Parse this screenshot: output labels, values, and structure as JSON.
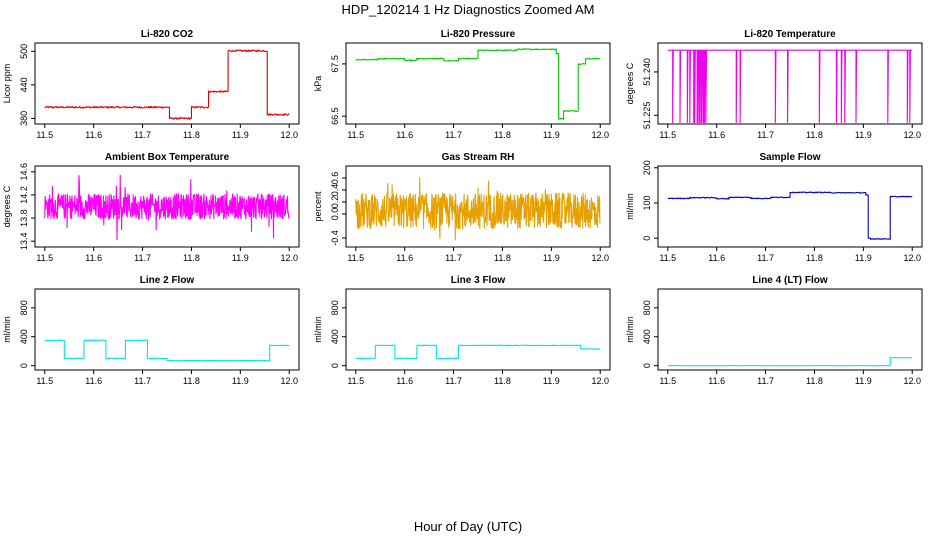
{
  "figure": {
    "title": "HDP_120214  1 Hz Diagnostics Zoomed AM",
    "xlabel": "Hour of Day (UTC)"
  },
  "chart_data": [
    {
      "type": "line",
      "title": "Li-820 CO2",
      "ylabel": "Licor ppm",
      "color": "#dd0000",
      "xlim": [
        11.5,
        12.0
      ],
      "ylim": [
        370,
        515
      ],
      "xticks": [
        "11.5",
        "11.6",
        "11.7",
        "11.8",
        "11.9",
        "12.0"
      ],
      "yticks": [
        380,
        440,
        500
      ],
      "shape": "step",
      "segments": [
        [
          11.5,
          11.755,
          400
        ],
        [
          11.755,
          11.8,
          380
        ],
        [
          11.8,
          11.835,
          400
        ],
        [
          11.835,
          11.875,
          428
        ],
        [
          11.875,
          11.955,
          501
        ],
        [
          11.955,
          12.0,
          387
        ]
      ],
      "noise": 1.5
    },
    {
      "type": "line",
      "title": "Li-820 Pressure",
      "ylabel": "kPa",
      "color": "#00cc00",
      "xlim": [
        11.5,
        12.0
      ],
      "ylim": [
        66.35,
        67.9
      ],
      "xticks": [
        "11.5",
        "11.6",
        "11.7",
        "11.8",
        "11.9",
        "12.0"
      ],
      "yticks": [
        "66.5",
        "67.5"
      ],
      "shape": "step",
      "segments": [
        [
          11.5,
          11.545,
          67.58
        ],
        [
          11.545,
          11.6,
          67.6
        ],
        [
          11.6,
          11.625,
          67.57
        ],
        [
          11.625,
          11.68,
          67.6
        ],
        [
          11.68,
          11.71,
          67.56
        ],
        [
          11.71,
          11.75,
          67.6
        ],
        [
          11.75,
          11.83,
          67.76
        ],
        [
          11.83,
          11.91,
          67.78
        ],
        [
          11.91,
          11.915,
          67.7
        ],
        [
          11.915,
          11.925,
          66.45
        ],
        [
          11.925,
          11.955,
          66.6
        ],
        [
          11.955,
          11.97,
          67.5
        ],
        [
          11.97,
          12.0,
          67.6
        ]
      ],
      "noise": 0.01
    },
    {
      "type": "line",
      "title": "Li-820 Temperature",
      "ylabel": "degrees C",
      "color": "#ee00ee",
      "xlim": [
        11.5,
        12.0
      ],
      "ylim": [
        51.222,
        51.25
      ],
      "xticks": [
        "11.5",
        "11.6",
        "11.7",
        "11.8",
        "11.9",
        "12.0"
      ],
      "yticks": [
        "51.225",
        "51.240"
      ],
      "shape": "spikes",
      "base": 51.2475,
      "spike_to": 51.2225,
      "spike_x": [
        11.51,
        11.525,
        11.54,
        11.545,
        11.553,
        11.555,
        11.56,
        11.562,
        11.565,
        11.568,
        11.57,
        11.573,
        11.575,
        11.578,
        11.64,
        11.648,
        11.72,
        11.745,
        11.81,
        11.845,
        11.855,
        11.862,
        11.885,
        11.95,
        11.99,
        11.995
      ]
    },
    {
      "type": "line",
      "title": "Ambient Box Temperature",
      "ylabel": "degrees C",
      "color": "#ff00ff",
      "xlim": [
        11.5,
        12.0
      ],
      "ylim": [
        13.3,
        14.7
      ],
      "xticks": [
        "11.5",
        "11.6",
        "11.7",
        "11.8",
        "11.9",
        "12.0"
      ],
      "yticks": [
        "13.4",
        "13.8",
        "14.2",
        "14.6"
      ],
      "shape": "noise",
      "center": 14.0,
      "amplitude": 0.22,
      "spike": 0.62
    },
    {
      "type": "line",
      "title": "Gas Stream RH",
      "ylabel": "percent",
      "color": "#e8a000",
      "xlim": [
        11.5,
        12.0
      ],
      "ylim": [
        -0.55,
        0.8
      ],
      "xticks": [
        "11.5",
        "11.6",
        "11.7",
        "11.8",
        "11.9",
        "12.0"
      ],
      "yticks": [
        "-0.4",
        "0.0",
        "0.2",
        "0.4",
        "0.6"
      ],
      "shape": "noise",
      "center": 0.05,
      "amplitude": 0.3,
      "spike": 0.6
    },
    {
      "type": "line",
      "title": "Sample Flow",
      "ylabel": "ml/min",
      "color": "#0000cc",
      "xlim": [
        11.5,
        12.0
      ],
      "ylim": [
        -25,
        205
      ],
      "xticks": [
        "11.5",
        "11.6",
        "11.7",
        "11.8",
        "11.9",
        "12.0"
      ],
      "yticks": [
        0,
        100,
        200
      ],
      "shape": "step",
      "segments": [
        [
          11.5,
          11.545,
          113
        ],
        [
          11.545,
          11.6,
          115
        ],
        [
          11.6,
          11.625,
          112
        ],
        [
          11.625,
          11.67,
          116
        ],
        [
          11.67,
          11.71,
          113
        ],
        [
          11.71,
          11.75,
          116
        ],
        [
          11.75,
          11.83,
          130
        ],
        [
          11.83,
          11.905,
          129
        ],
        [
          11.905,
          11.91,
          122
        ],
        [
          11.91,
          11.915,
          0
        ],
        [
          11.915,
          11.955,
          -2
        ],
        [
          11.955,
          11.96,
          118
        ],
        [
          11.96,
          12.0,
          118
        ]
      ],
      "noise": 1.2
    },
    {
      "type": "line",
      "title": "Line 2 Flow",
      "ylabel": "ml/min",
      "color": "#00e5ee",
      "xlim": [
        11.5,
        12.0
      ],
      "ylim": [
        -60,
        1060
      ],
      "xticks": [
        "11.5",
        "11.6",
        "11.7",
        "11.8",
        "11.9",
        "12.0"
      ],
      "yticks": [
        0,
        400,
        800
      ],
      "shape": "step",
      "segments": [
        [
          11.5,
          11.54,
          350
        ],
        [
          11.54,
          11.58,
          100
        ],
        [
          11.58,
          11.625,
          350
        ],
        [
          11.625,
          11.665,
          100
        ],
        [
          11.665,
          11.71,
          350
        ],
        [
          11.71,
          11.75,
          100
        ],
        [
          11.75,
          11.96,
          70
        ],
        [
          11.96,
          12.0,
          280
        ]
      ],
      "noise": 5
    },
    {
      "type": "line",
      "title": "Line 3 Flow",
      "ylabel": "ml/min",
      "color": "#00e5ee",
      "xlim": [
        11.5,
        12.0
      ],
      "ylim": [
        -60,
        1060
      ],
      "xticks": [
        "11.5",
        "11.6",
        "11.7",
        "11.8",
        "11.9",
        "12.0"
      ],
      "yticks": [
        0,
        400,
        800
      ],
      "shape": "step",
      "segments": [
        [
          11.5,
          11.54,
          100
        ],
        [
          11.54,
          11.58,
          280
        ],
        [
          11.58,
          11.625,
          100
        ],
        [
          11.625,
          11.665,
          280
        ],
        [
          11.665,
          11.71,
          100
        ],
        [
          11.71,
          11.96,
          280
        ],
        [
          11.96,
          12.0,
          230
        ]
      ],
      "noise": 5
    },
    {
      "type": "line",
      "title": "Line 4 (LT) Flow",
      "ylabel": "ml/min",
      "color": "#00e5ee",
      "xlim": [
        11.5,
        12.0
      ],
      "ylim": [
        -60,
        1060
      ],
      "xticks": [
        "11.5",
        "11.6",
        "11.7",
        "11.8",
        "11.9",
        "12.0"
      ],
      "yticks": [
        0,
        400,
        800
      ],
      "shape": "step",
      "segments": [
        [
          11.5,
          11.955,
          0
        ],
        [
          11.955,
          12.0,
          110
        ]
      ],
      "noise": 1
    }
  ]
}
